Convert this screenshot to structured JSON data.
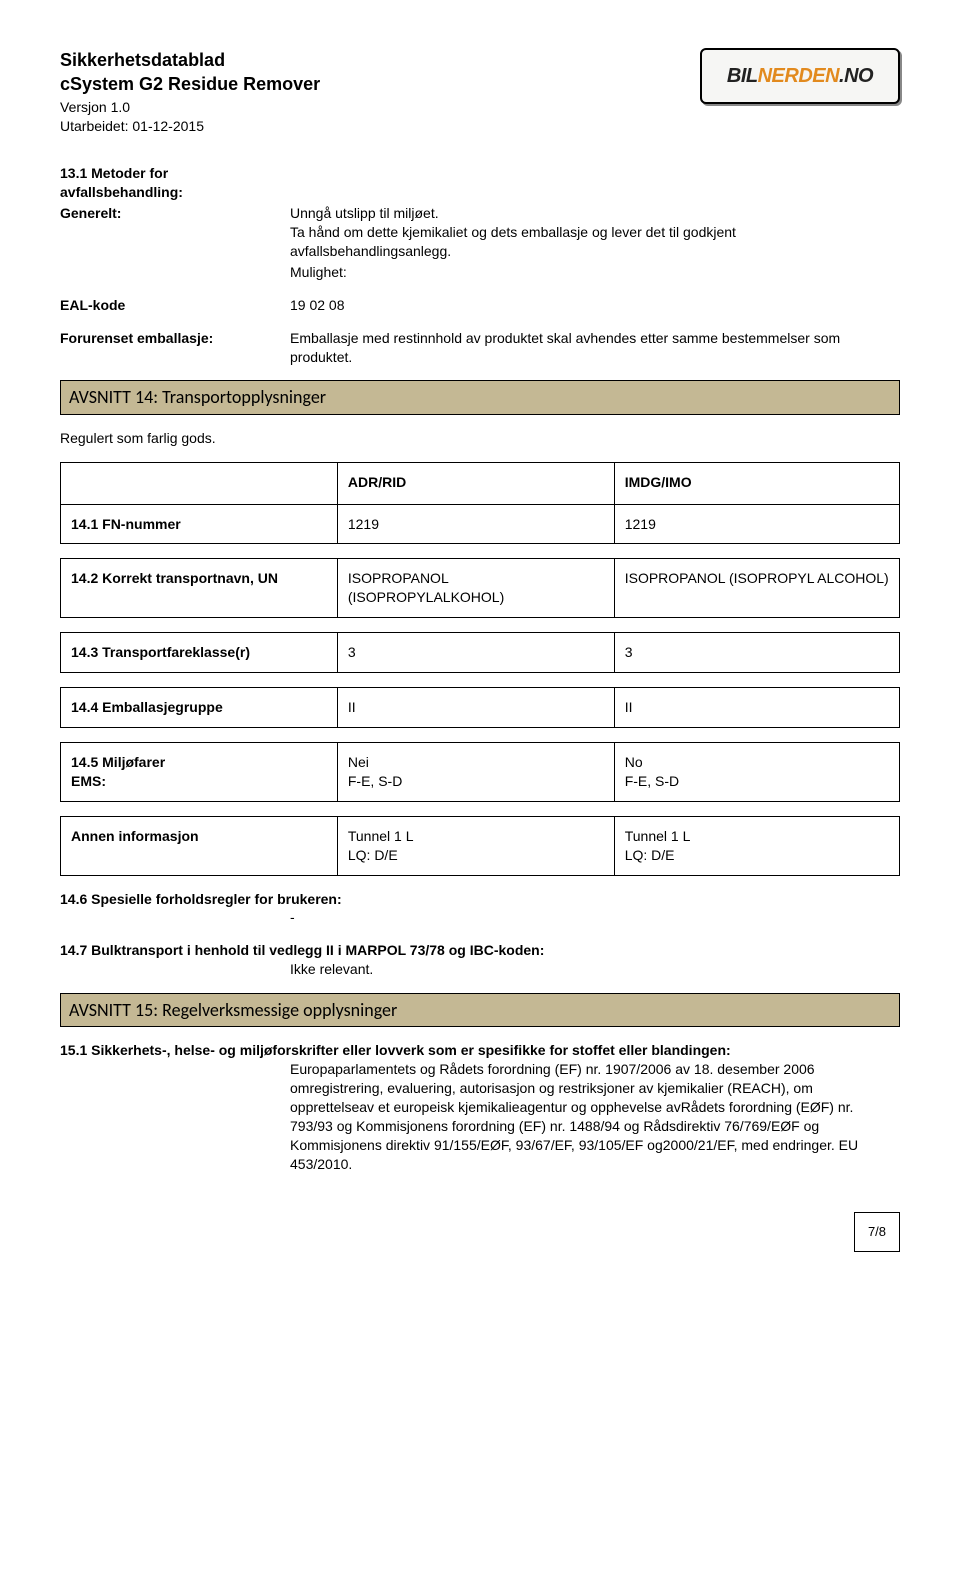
{
  "header": {
    "title": "Sikkerhetsdatablad",
    "subtitle": "cSystem G2 Residue Remover",
    "version": "Versjon 1.0",
    "date": "Utarbeidet: 01-12-2015",
    "logo": {
      "part1": "BIL",
      "part2": "NERDEN",
      "part3": ".NO"
    }
  },
  "sec13": {
    "heading": "13.1 Metoder for avfallsbehandling:",
    "general_label": "Generelt:",
    "general_text": "Unngå utslipp til miljøet.\nTa hånd om dette kjemikaliet og dets emballasje og lever det til godkjent avfallsbehandlingsanlegg.",
    "mulighet_label": "Mulighet:",
    "eal_label": "EAL-kode",
    "eal_value": "19 02 08",
    "forurenset_label": "Forurenset emballasje:",
    "forurenset_value": "Emballasje med restinnhold av produktet skal avhendes etter samme bestemmelser som produktet."
  },
  "banner14": "AVSNITT 14: Transportopplysninger",
  "regulert": "Regulert som farlig gods.",
  "transport": {
    "col_a_hdr": "ADR/RID",
    "col_b_hdr": "IMDG/IMO",
    "rows": [
      {
        "label": "14.1 FN-nummer",
        "a": "1219",
        "b": "1219"
      },
      {
        "label": "14.2 Korrekt transportnavn, UN",
        "a": "ISOPROPANOL (ISOPROPYLALKOHOL)",
        "b": "ISOPROPANOL (ISOPROPYL ALCOHOL)"
      },
      {
        "label": "14.3 Transportfareklasse(r)",
        "a": "3",
        "b": "3"
      },
      {
        "label": "14.4 Emballasjegruppe",
        "a": "II",
        "b": "II"
      },
      {
        "label": "14.5 Miljøfarer\nEMS:",
        "a": "Nei\nF-E, S-D",
        "b": "No\nF-E, S-D"
      },
      {
        "label": "Annen informasjon",
        "a": "Tunnel 1 L\nLQ: D/E",
        "b": "Tunnel 1 L\nLQ: D/E"
      }
    ]
  },
  "sec14_6": {
    "heading": "14.6 Spesielle forholdsregler for brukeren:",
    "value": "-"
  },
  "sec14_7": {
    "heading": "14.7 Bulktransport i henhold til vedlegg II i MARPOL 73/78 og IBC-koden:",
    "value": "Ikke relevant."
  },
  "banner15": "AVSNITT 15: Regelverksmessige opplysninger",
  "sec15_1": {
    "heading": "15.1 Sikkerhets-, helse- og miljøforskrifter eller lovverk som er spesifikke for stoffet eller blandingen:",
    "value": "Europaparlamentets og Rådets forordning (EF) nr. 1907/2006 av 18. desember 2006 omregistrering, evaluering, autorisasjon og restriksjoner av kjemikalier (REACH), om opprettelseav et europeisk kjemikalieagentur og opphevelse avRådets forordning (EØF) nr. 793/93 og Kommisjonens forordning (EF) nr. 1488/94 og Rådsdirektiv 76/769/EØF og Kommisjonens direktiv 91/155/EØF, 93/67/EF, 93/105/EF og2000/21/EF, med endringer. EU 453/2010."
  },
  "page": "7/8",
  "style": {
    "banner_bg": "#c4b894",
    "banner_border": "#000000",
    "page_bg": "#ffffff",
    "text_color": "#000000",
    "logo_accent": "#e28a1e"
  }
}
